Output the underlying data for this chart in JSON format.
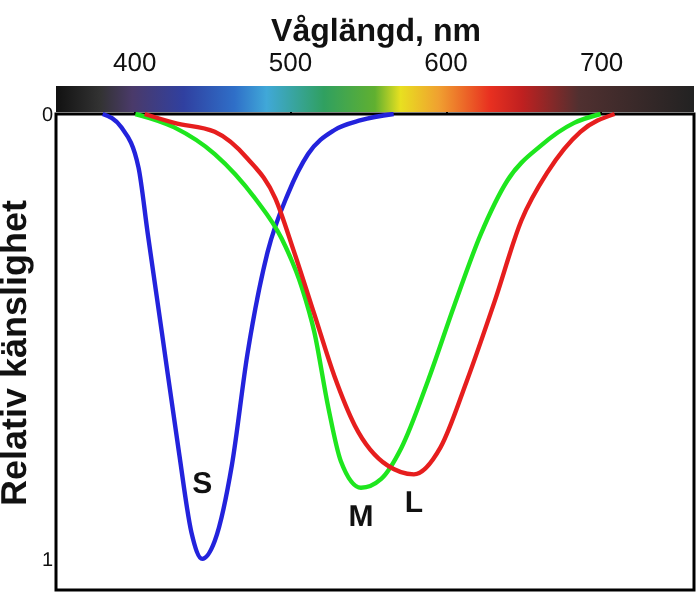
{
  "chart_data": {
    "type": "line",
    "xlabel": "Våglängd, nm",
    "ylabel": "Relativ känslighet",
    "xlim": [
      350,
      760
    ],
    "xticks": [
      400,
      500,
      600,
      700
    ],
    "ylim": [
      1.07,
      0
    ],
    "yticks": [
      0,
      1
    ],
    "grid": false,
    "marker": "none",
    "line_style": "solid",
    "series": [
      {
        "name": "S",
        "color": "#2323dc",
        "x": [
          380,
          392,
          403,
          409,
          418,
          429,
          437,
          444,
          452,
          463,
          473,
          486,
          499,
          512,
          529,
          546,
          567
        ],
        "values": [
          0,
          0.03,
          0.12,
          0.27,
          0.49,
          0.76,
          0.94,
          1.0,
          0.96,
          0.79,
          0.54,
          0.31,
          0.18,
          0.09,
          0.036,
          0.014,
          0
        ]
      },
      {
        "name": "M",
        "color": "#1ee61e",
        "x": [
          401,
          426,
          452,
          478,
          495,
          508,
          516,
          525,
          533,
          546,
          559,
          572,
          589,
          606,
          623,
          640,
          662,
          683,
          700
        ],
        "values": [
          0,
          0.03,
          0.09,
          0.19,
          0.28,
          0.39,
          0.49,
          0.66,
          0.78,
          0.84,
          0.82,
          0.75,
          0.6,
          0.43,
          0.27,
          0.15,
          0.07,
          0.02,
          0
        ]
      },
      {
        "name": "L",
        "color": "#e61e1e",
        "x": [
          407,
          426,
          452,
          473,
          491,
          503,
          516,
          529,
          542,
          563,
          580,
          597,
          614,
          632,
          649,
          666,
          687,
          709
        ],
        "values": [
          0,
          0.02,
          0.04,
          0.1,
          0.19,
          0.31,
          0.45,
          0.59,
          0.7,
          0.79,
          0.81,
          0.75,
          0.6,
          0.42,
          0.24,
          0.13,
          0.04,
          0
        ]
      }
    ]
  }
}
